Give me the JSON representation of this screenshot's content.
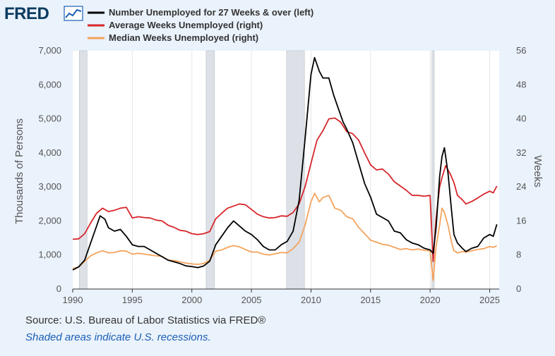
{
  "logo": {
    "text": "FRED"
  },
  "footer": {
    "source": "Source: U.S. Bureau of Labor Statistics via FRED®",
    "note": "Shaded areas indicate U.S. recessions."
  },
  "chart_data": {
    "type": "line",
    "title": "",
    "left_axis": {
      "label": "Thousands of Persons",
      "range": [
        0,
        7000
      ],
      "ticks": [
        0,
        1000,
        2000,
        3000,
        4000,
        5000,
        6000,
        7000
      ],
      "tick_labels": [
        "0",
        "1,000",
        "2,000",
        "3,000",
        "4,000",
        "5,000",
        "6,000",
        "7,000"
      ]
    },
    "right_axis": {
      "label": "Weeks",
      "range": [
        0,
        56
      ],
      "ticks": [
        0,
        8,
        16,
        24,
        32,
        40,
        48,
        56
      ],
      "tick_labels": [
        "0",
        "8",
        "16",
        "24",
        "32",
        "40",
        "48",
        "56"
      ]
    },
    "x_axis": {
      "range": [
        1990,
        2025.8
      ],
      "ticks": [
        1990,
        1995,
        2000,
        2005,
        2010,
        2015,
        2020,
        2025
      ],
      "tick_labels": [
        "1990",
        "1995",
        "2000",
        "2005",
        "2010",
        "2015",
        "2020",
        "2025"
      ]
    },
    "grid": "vertical",
    "legend_placement": "top",
    "recessions": [
      [
        1990.55,
        1991.2
      ],
      [
        2001.2,
        2001.9
      ],
      [
        2007.95,
        2009.45
      ],
      [
        2020.15,
        2020.35
      ]
    ],
    "series": [
      {
        "name": "Number Unemployed for 27 Weeks & over (left)",
        "axis": "left",
        "color": "#000000",
        "points": [
          [
            1990.0,
            560
          ],
          [
            1990.5,
            650
          ],
          [
            1991.0,
            850
          ],
          [
            1991.5,
            1350
          ],
          [
            1991.9,
            1750
          ],
          [
            1992.3,
            2150
          ],
          [
            1992.7,
            2050
          ],
          [
            1993.0,
            1800
          ],
          [
            1993.5,
            1700
          ],
          [
            1994.0,
            1750
          ],
          [
            1994.5,
            1550
          ],
          [
            1995.0,
            1300
          ],
          [
            1995.5,
            1250
          ],
          [
            1996.0,
            1250
          ],
          [
            1996.5,
            1150
          ],
          [
            1997.0,
            1050
          ],
          [
            1997.5,
            950
          ],
          [
            1998.0,
            850
          ],
          [
            1998.5,
            800
          ],
          [
            1999.0,
            750
          ],
          [
            1999.5,
            680
          ],
          [
            2000.0,
            660
          ],
          [
            2000.5,
            630
          ],
          [
            2001.0,
            680
          ],
          [
            2001.5,
            820
          ],
          [
            2002.0,
            1300
          ],
          [
            2002.5,
            1550
          ],
          [
            2003.0,
            1800
          ],
          [
            2003.5,
            2000
          ],
          [
            2004.0,
            1850
          ],
          [
            2004.5,
            1700
          ],
          [
            2005.0,
            1600
          ],
          [
            2005.5,
            1450
          ],
          [
            2006.0,
            1250
          ],
          [
            2006.5,
            1150
          ],
          [
            2007.0,
            1150
          ],
          [
            2007.5,
            1300
          ],
          [
            2008.0,
            1400
          ],
          [
            2008.5,
            1700
          ],
          [
            2009.0,
            2600
          ],
          [
            2009.5,
            4400
          ],
          [
            2010.0,
            6300
          ],
          [
            2010.3,
            6800
          ],
          [
            2010.7,
            6400
          ],
          [
            2011.0,
            6200
          ],
          [
            2011.5,
            6200
          ],
          [
            2011.9,
            5700
          ],
          [
            2012.3,
            5300
          ],
          [
            2012.7,
            4900
          ],
          [
            2013.0,
            4700
          ],
          [
            2013.5,
            4300
          ],
          [
            2014.0,
            3700
          ],
          [
            2014.5,
            3100
          ],
          [
            2015.0,
            2700
          ],
          [
            2015.5,
            2200
          ],
          [
            2016.0,
            2100
          ],
          [
            2016.5,
            2000
          ],
          [
            2017.0,
            1700
          ],
          [
            2017.5,
            1650
          ],
          [
            2018.0,
            1450
          ],
          [
            2018.5,
            1350
          ],
          [
            2019.0,
            1300
          ],
          [
            2019.5,
            1200
          ],
          [
            2020.0,
            1150
          ],
          [
            2020.25,
            1050
          ],
          [
            2020.5,
            1800
          ],
          [
            2020.8,
            3300
          ],
          [
            2021.0,
            3900
          ],
          [
            2021.2,
            4150
          ],
          [
            2021.5,
            3400
          ],
          [
            2021.8,
            2300
          ],
          [
            2022.0,
            1600
          ],
          [
            2022.3,
            1350
          ],
          [
            2022.7,
            1200
          ],
          [
            2023.0,
            1100
          ],
          [
            2023.5,
            1200
          ],
          [
            2024.0,
            1250
          ],
          [
            2024.5,
            1500
          ],
          [
            2025.0,
            1600
          ],
          [
            2025.3,
            1550
          ],
          [
            2025.6,
            1900
          ]
        ]
      },
      {
        "name": "Average Weeks Unemployed (right)",
        "axis": "right",
        "color": "#d7262b",
        "points": [
          [
            1990.0,
            11.7
          ],
          [
            1990.5,
            11.8
          ],
          [
            1991.0,
            13.0
          ],
          [
            1991.5,
            15.5
          ],
          [
            1992.0,
            17.8
          ],
          [
            1992.5,
            19.0
          ],
          [
            1993.0,
            18.2
          ],
          [
            1993.5,
            18.5
          ],
          [
            1994.0,
            19.0
          ],
          [
            1994.5,
            19.2
          ],
          [
            1995.0,
            16.7
          ],
          [
            1995.5,
            17.0
          ],
          [
            1996.0,
            16.8
          ],
          [
            1996.5,
            16.7
          ],
          [
            1997.0,
            16.2
          ],
          [
            1997.5,
            16.0
          ],
          [
            1998.0,
            15.0
          ],
          [
            1998.5,
            14.5
          ],
          [
            1999.0,
            13.8
          ],
          [
            1999.5,
            13.6
          ],
          [
            2000.0,
            13.0
          ],
          [
            2000.5,
            12.8
          ],
          [
            2001.0,
            13.0
          ],
          [
            2001.5,
            13.5
          ],
          [
            2002.0,
            16.5
          ],
          [
            2002.5,
            17.8
          ],
          [
            2003.0,
            19.0
          ],
          [
            2003.5,
            19.5
          ],
          [
            2004.0,
            20.0
          ],
          [
            2004.5,
            19.8
          ],
          [
            2005.0,
            18.7
          ],
          [
            2005.5,
            17.6
          ],
          [
            2006.0,
            17.0
          ],
          [
            2006.5,
            16.7
          ],
          [
            2007.0,
            16.8
          ],
          [
            2007.5,
            17.2
          ],
          [
            2008.0,
            17.1
          ],
          [
            2008.5,
            18.0
          ],
          [
            2009.0,
            20.0
          ],
          [
            2009.5,
            24.0
          ],
          [
            2010.0,
            29.5
          ],
          [
            2010.5,
            35.0
          ],
          [
            2011.0,
            37.2
          ],
          [
            2011.5,
            40.0
          ],
          [
            2012.0,
            40.2
          ],
          [
            2012.5,
            39.2
          ],
          [
            2013.0,
            37.0
          ],
          [
            2013.5,
            36.5
          ],
          [
            2014.0,
            35.0
          ],
          [
            2014.5,
            32.0
          ],
          [
            2015.0,
            29.2
          ],
          [
            2015.5,
            28.0
          ],
          [
            2016.0,
            28.2
          ],
          [
            2016.5,
            27.0
          ],
          [
            2017.0,
            25.2
          ],
          [
            2017.5,
            24.2
          ],
          [
            2018.0,
            23.2
          ],
          [
            2018.5,
            22.0
          ],
          [
            2019.0,
            22.0
          ],
          [
            2019.5,
            21.8
          ],
          [
            2020.0,
            22.0
          ],
          [
            2020.25,
            6.5
          ],
          [
            2020.5,
            16.5
          ],
          [
            2020.8,
            24.0
          ],
          [
            2021.0,
            26.2
          ],
          [
            2021.3,
            29.0
          ],
          [
            2021.7,
            27.0
          ],
          [
            2022.0,
            25.0
          ],
          [
            2022.3,
            22.0
          ],
          [
            2022.7,
            21.0
          ],
          [
            2023.0,
            20.0
          ],
          [
            2023.5,
            20.6
          ],
          [
            2024.0,
            21.4
          ],
          [
            2024.5,
            22.3
          ],
          [
            2025.0,
            23.0
          ],
          [
            2025.3,
            22.6
          ],
          [
            2025.6,
            24.2
          ]
        ]
      },
      {
        "name": "Median Weeks Unemployed (right)",
        "axis": "right",
        "color": "#f5a35c",
        "points": [
          [
            1990.0,
            4.8
          ],
          [
            1990.5,
            5.2
          ],
          [
            1991.0,
            6.5
          ],
          [
            1991.5,
            7.8
          ],
          [
            1992.0,
            8.5
          ],
          [
            1992.5,
            9.0
          ],
          [
            1993.0,
            8.5
          ],
          [
            1993.5,
            8.6
          ],
          [
            1994.0,
            9.0
          ],
          [
            1994.5,
            8.9
          ],
          [
            1995.0,
            8.2
          ],
          [
            1995.5,
            8.4
          ],
          [
            1996.0,
            8.2
          ],
          [
            1996.5,
            8.0
          ],
          [
            1997.0,
            7.8
          ],
          [
            1997.5,
            7.7
          ],
          [
            1998.0,
            6.8
          ],
          [
            1998.5,
            6.7
          ],
          [
            1999.0,
            6.4
          ],
          [
            1999.5,
            6.1
          ],
          [
            2000.0,
            5.9
          ],
          [
            2000.5,
            5.8
          ],
          [
            2001.0,
            6.0
          ],
          [
            2001.5,
            6.8
          ],
          [
            2002.0,
            8.9
          ],
          [
            2002.5,
            9.2
          ],
          [
            2003.0,
            9.8
          ],
          [
            2003.5,
            10.2
          ],
          [
            2004.0,
            9.9
          ],
          [
            2004.5,
            9.3
          ],
          [
            2005.0,
            8.7
          ],
          [
            2005.5,
            8.7
          ],
          [
            2006.0,
            8.2
          ],
          [
            2006.5,
            8.0
          ],
          [
            2007.0,
            8.3
          ],
          [
            2007.5,
            8.6
          ],
          [
            2008.0,
            8.5
          ],
          [
            2008.5,
            9.5
          ],
          [
            2009.0,
            11.0
          ],
          [
            2009.5,
            15.0
          ],
          [
            2010.0,
            20.5
          ],
          [
            2010.3,
            22.5
          ],
          [
            2010.7,
            20.5
          ],
          [
            2011.0,
            21.5
          ],
          [
            2011.5,
            22.0
          ],
          [
            2012.0,
            19.0
          ],
          [
            2012.5,
            18.5
          ],
          [
            2013.0,
            17.0
          ],
          [
            2013.5,
            16.5
          ],
          [
            2014.0,
            14.5
          ],
          [
            2014.5,
            13.0
          ],
          [
            2015.0,
            11.5
          ],
          [
            2015.5,
            11.0
          ],
          [
            2016.0,
            10.5
          ],
          [
            2016.5,
            10.3
          ],
          [
            2017.0,
            9.8
          ],
          [
            2017.5,
            9.3
          ],
          [
            2018.0,
            9.5
          ],
          [
            2018.5,
            9.2
          ],
          [
            2019.0,
            9.4
          ],
          [
            2019.5,
            9.1
          ],
          [
            2020.0,
            9.0
          ],
          [
            2020.25,
            2.0
          ],
          [
            2020.5,
            10.0
          ],
          [
            2020.8,
            15.0
          ],
          [
            2021.0,
            19.0
          ],
          [
            2021.2,
            18.0
          ],
          [
            2021.5,
            15.0
          ],
          [
            2021.8,
            11.0
          ],
          [
            2022.0,
            9.0
          ],
          [
            2022.3,
            8.5
          ],
          [
            2022.7,
            8.8
          ],
          [
            2023.0,
            8.7
          ],
          [
            2023.5,
            9.0
          ],
          [
            2024.0,
            9.3
          ],
          [
            2024.5,
            9.5
          ],
          [
            2025.0,
            10.0
          ],
          [
            2025.3,
            9.8
          ],
          [
            2025.6,
            10.2
          ]
        ]
      }
    ]
  }
}
